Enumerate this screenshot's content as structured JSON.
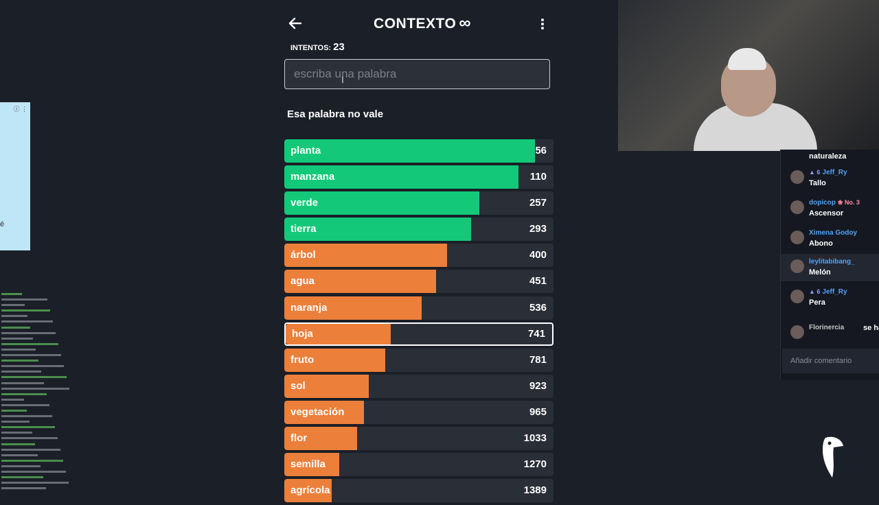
{
  "header": {
    "title": "CONTEXTO",
    "title_symbol": "∞"
  },
  "attempts": {
    "label": "INTENTOS:",
    "value": "23"
  },
  "guess_input": {
    "placeholder": "escriba una palabra",
    "value": ""
  },
  "message": "Esa palabra no vale",
  "colors": {
    "green": "#13c979",
    "orange": "#ec7f3a",
    "background": "#1b1f27",
    "track": "#2a2e37"
  },
  "guesses": [
    {
      "word": "planta",
      "rank": "56",
      "color": "green",
      "fill_pct": 93
    },
    {
      "word": "manzana",
      "rank": "110",
      "color": "green",
      "fill_pct": 87
    },
    {
      "word": "verde",
      "rank": "257",
      "color": "green",
      "fill_pct": 72.5
    },
    {
      "word": "tierra",
      "rank": "293",
      "color": "green",
      "fill_pct": 69.5
    },
    {
      "word": "árbol",
      "rank": "400",
      "color": "orange",
      "fill_pct": 60.5
    },
    {
      "word": "agua",
      "rank": "451",
      "color": "orange",
      "fill_pct": 56.5
    },
    {
      "word": "naranja",
      "rank": "536",
      "color": "orange",
      "fill_pct": 51
    },
    {
      "word": "hoja",
      "rank": "741",
      "color": "orange",
      "fill_pct": 39.5,
      "selected": true
    },
    {
      "word": "fruto",
      "rank": "781",
      "color": "orange",
      "fill_pct": 37.5
    },
    {
      "word": "sol",
      "rank": "923",
      "color": "orange",
      "fill_pct": 31.5
    },
    {
      "word": "vegetación",
      "rank": "965",
      "color": "orange",
      "fill_pct": 29.5
    },
    {
      "word": "flor",
      "rank": "1033",
      "color": "orange",
      "fill_pct": 27
    },
    {
      "word": "semilla",
      "rank": "1270",
      "color": "orange",
      "fill_pct": 20.5
    },
    {
      "word": "agrícola",
      "rank": "1389",
      "color": "orange",
      "fill_pct": 17.5
    }
  ],
  "ad": {
    "text": "é"
  },
  "stream_chat": {
    "messages": [
      {
        "user": "",
        "text": "naturaleza"
      },
      {
        "user": "Jeff_Ry",
        "badge": "▲ 6",
        "text": "Tallo"
      },
      {
        "user": "dopicop",
        "badge2": "❀ No. 3",
        "text": "Ascensor"
      },
      {
        "user": "Ximena Godoy",
        "text": "Abono"
      },
      {
        "user": "leylitabibang_",
        "text": "Melón",
        "highlight": true
      },
      {
        "user": "Jeff_Ry",
        "badge": "▲ 6",
        "text": "Pera"
      },
      {
        "user": "Florinercia",
        "text": "se ha u"
      }
    ],
    "comment_placeholder": "Añadir comentario"
  }
}
